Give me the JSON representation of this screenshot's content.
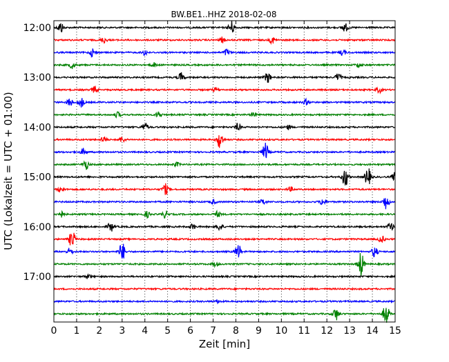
{
  "chart_data": {
    "type": "line",
    "title": "BW.BE1..HHZ 2018-02-08",
    "xlabel": "Zeit  [min]",
    "ylabel": "UTC (Lokalzeit = UTC + 01:00)",
    "xlim": [
      0,
      15
    ],
    "x_ticks": [
      "0",
      "1",
      "2",
      "3",
      "4",
      "5",
      "6",
      "7",
      "8",
      "9",
      "10",
      "11",
      "12",
      "13",
      "14",
      "15"
    ],
    "y_ticks": [
      "12:00",
      "13:00",
      "14:00",
      "15:00",
      "16:00",
      "17:00"
    ],
    "grid": "vertical dotted",
    "colors": [
      "#000000",
      "#ff0000",
      "#0000ff",
      "#008000"
    ],
    "series": [
      {
        "start": "12:00",
        "color": "#000000",
        "events": [
          [
            0.3,
            8
          ],
          [
            7.8,
            10
          ],
          [
            12.8,
            6
          ]
        ]
      },
      {
        "start": "12:15",
        "color": "#ff0000",
        "events": [
          [
            2.2,
            4
          ],
          [
            7.4,
            4
          ],
          [
            9.6,
            5
          ]
        ]
      },
      {
        "start": "12:30",
        "color": "#0000ff",
        "events": [
          [
            1.7,
            6
          ],
          [
            4,
            4
          ],
          [
            7.6,
            5
          ],
          [
            12.7,
            4
          ]
        ]
      },
      {
        "start": "12:45",
        "color": "#008000",
        "events": [
          [
            0.8,
            5
          ],
          [
            4.4,
            3
          ],
          [
            13.4,
            3
          ]
        ]
      },
      {
        "start": "13:00",
        "color": "#000000",
        "events": [
          [
            5.6,
            7
          ],
          [
            9.4,
            8
          ],
          [
            12.5,
            6
          ]
        ]
      },
      {
        "start": "13:15",
        "color": "#ff0000",
        "events": [
          [
            1.8,
            5
          ],
          [
            7.1,
            3
          ],
          [
            14.3,
            4
          ]
        ]
      },
      {
        "start": "13:30",
        "color": "#0000ff",
        "events": [
          [
            0.7,
            6
          ],
          [
            1.2,
            7
          ],
          [
            11.1,
            4
          ]
        ]
      },
      {
        "start": "13:45",
        "color": "#008000",
        "events": [
          [
            2.8,
            4
          ],
          [
            4.6,
            4
          ],
          [
            8.8,
            3
          ]
        ]
      },
      {
        "start": "14:00",
        "color": "#000000",
        "events": [
          [
            4.0,
            6
          ],
          [
            8.1,
            5
          ],
          [
            10.3,
            3
          ]
        ]
      },
      {
        "start": "14:15",
        "color": "#ff0000",
        "events": [
          [
            2.2,
            5
          ],
          [
            3.0,
            4
          ],
          [
            7.3,
            13
          ]
        ]
      },
      {
        "start": "14:30",
        "color": "#0000ff",
        "events": [
          [
            1.3,
            5
          ],
          [
            9.3,
            13
          ]
        ]
      },
      {
        "start": "14:45",
        "color": "#008000",
        "events": [
          [
            1.4,
            7
          ],
          [
            5.4,
            3
          ]
        ]
      },
      {
        "start": "15:00",
        "color": "#000000",
        "events": [
          [
            12.8,
            15
          ],
          [
            13.8,
            14
          ],
          [
            15,
            7
          ]
        ]
      },
      {
        "start": "15:15",
        "color": "#ff0000",
        "events": [
          [
            0.3,
            4
          ],
          [
            4.9,
            8
          ],
          [
            10.4,
            3
          ]
        ]
      },
      {
        "start": "15:30",
        "color": "#0000ff",
        "events": [
          [
            7.0,
            3
          ],
          [
            9.2,
            4
          ],
          [
            11.8,
            5
          ],
          [
            14.6,
            11
          ]
        ]
      },
      {
        "start": "15:45",
        "color": "#008000",
        "events": [
          [
            0.3,
            5
          ],
          [
            4.1,
            4
          ],
          [
            4.9,
            5
          ],
          [
            7.2,
            4
          ]
        ]
      },
      {
        "start": "16:00",
        "color": "#000000",
        "events": [
          [
            2.5,
            7
          ],
          [
            6.1,
            4
          ],
          [
            7.3,
            6
          ],
          [
            14.8,
            6
          ]
        ]
      },
      {
        "start": "16:15",
        "color": "#ff0000",
        "events": [
          [
            0.8,
            14
          ],
          [
            14.4,
            5
          ]
        ]
      },
      {
        "start": "16:30",
        "color": "#0000ff",
        "events": [
          [
            0.7,
            5
          ],
          [
            3.0,
            14
          ],
          [
            8.1,
            11
          ],
          [
            14.1,
            8
          ]
        ]
      },
      {
        "start": "16:45",
        "color": "#008000",
        "events": [
          [
            7.1,
            3
          ],
          [
            13.5,
            18
          ]
        ]
      },
      {
        "start": "17:00",
        "color": "#000000",
        "events": [
          [
            1.5,
            3
          ]
        ]
      },
      {
        "start": "17:15",
        "color": "#ff0000",
        "events": []
      },
      {
        "start": "17:30",
        "color": "#0000ff",
        "events": [
          [
            7.2,
            2
          ]
        ]
      },
      {
        "start": "17:45",
        "color": "#008000",
        "events": [
          [
            12.4,
            9
          ],
          [
            14.6,
            16
          ]
        ]
      }
    ]
  }
}
